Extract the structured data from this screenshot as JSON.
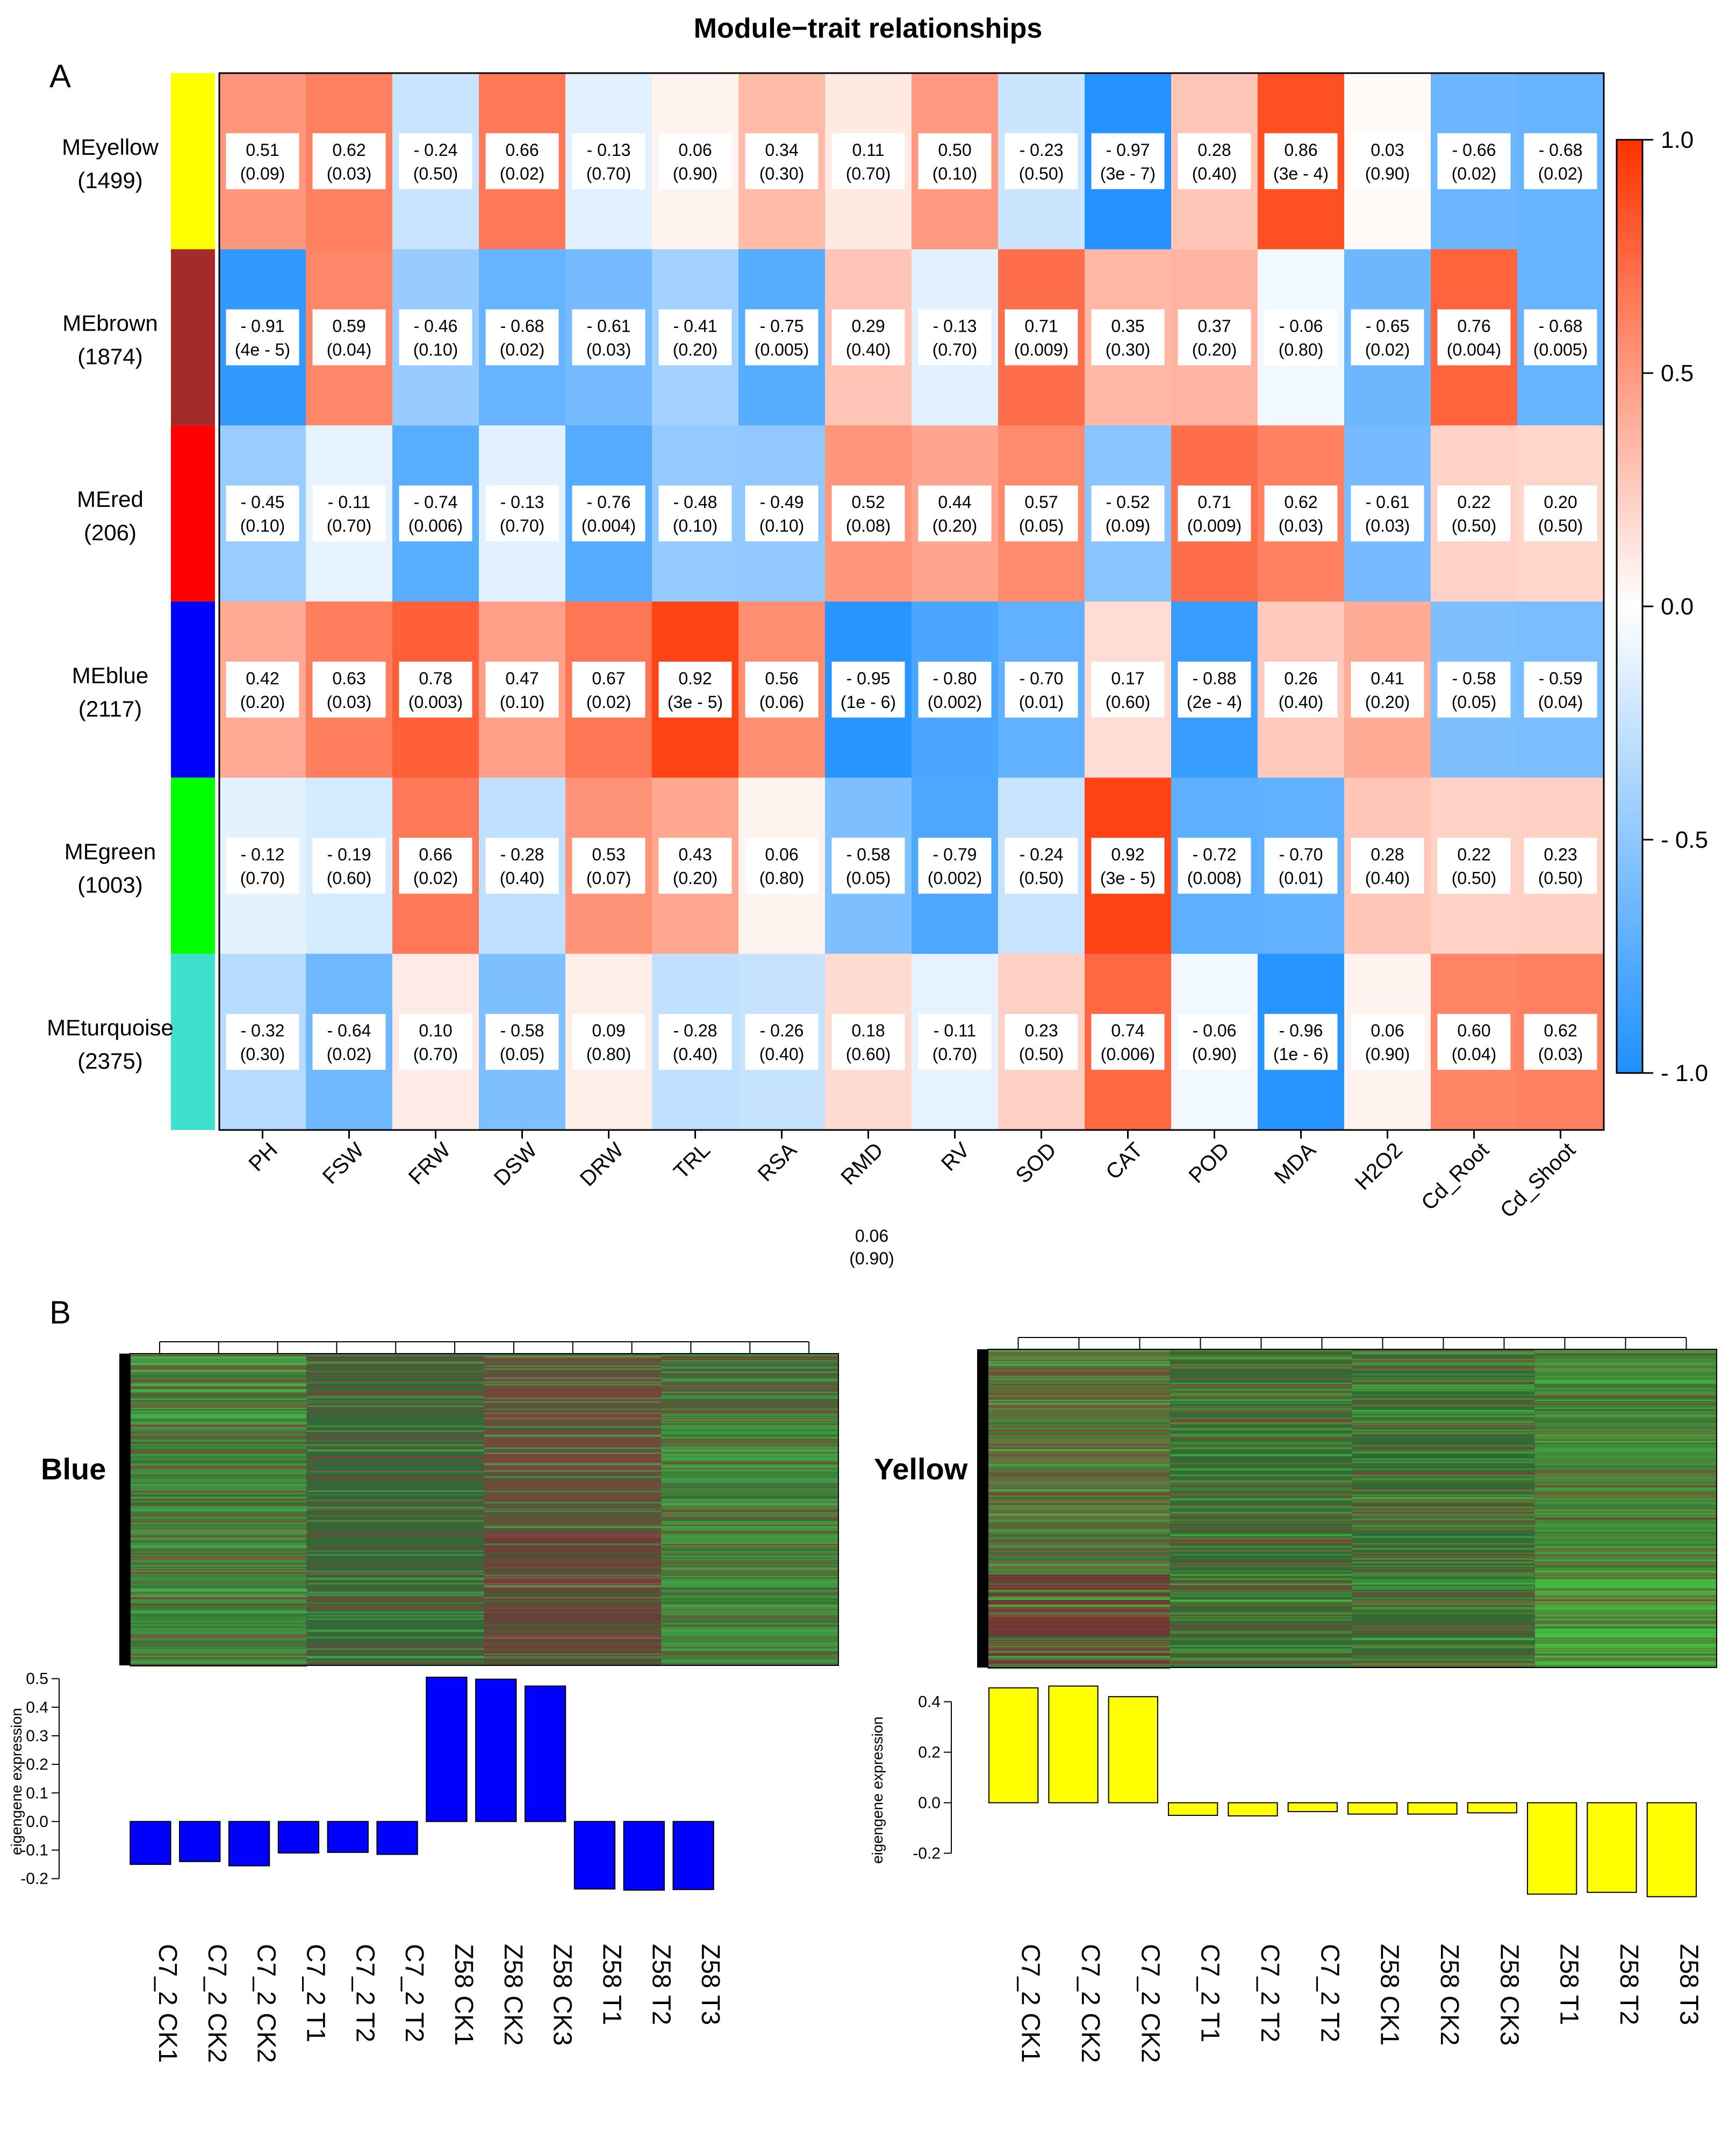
{
  "panel_a": {
    "letter": "A",
    "title": "Module−trait relationships",
    "stray_label": {
      "value": "0.06",
      "p": "(0.90)"
    }
  },
  "panel_b": {
    "letter": "B",
    "blue_label": "Blue",
    "yellow_label": "Yellow"
  },
  "chart_data": [
    {
      "type": "heatmap",
      "title": "Module−trait relationships",
      "rows": [
        {
          "name": "MEyellow",
          "count": "(1499)",
          "color": "#ffff00"
        },
        {
          "name": "MEbrown",
          "count": "(1874)",
          "color": "#a52a2a"
        },
        {
          "name": "MEred",
          "count": "(206)",
          "color": "#ff0000"
        },
        {
          "name": "MEblue",
          "count": "(2117)",
          "color": "#0000ff"
        },
        {
          "name": "MEgreen",
          "count": "(1003)",
          "color": "#00ff00"
        },
        {
          "name": "MEturquoise",
          "count": "(2375)",
          "color": "#40e0d0"
        }
      ],
      "columns": [
        "PH",
        "FSW",
        "FRW",
        "DSW",
        "DRW",
        "TRL",
        "RSA",
        "RMD",
        "RV",
        "SOD",
        "CAT",
        "POD",
        "MDA",
        "H2O2",
        "Cd_Root",
        "Cd_Shoot"
      ],
      "values": [
        [
          0.51,
          0.62,
          -0.24,
          0.66,
          -0.13,
          0.06,
          0.34,
          0.11,
          0.5,
          -0.23,
          -0.97,
          0.28,
          0.86,
          0.03,
          -0.66,
          -0.68
        ],
        [
          -0.91,
          0.59,
          -0.46,
          -0.68,
          -0.61,
          -0.41,
          -0.75,
          0.29,
          -0.13,
          0.71,
          0.35,
          0.37,
          -0.06,
          -0.65,
          0.76,
          -0.68
        ],
        [
          -0.45,
          -0.11,
          -0.74,
          -0.13,
          -0.76,
          -0.48,
          -0.49,
          0.52,
          0.44,
          0.57,
          -0.52,
          0.71,
          0.62,
          -0.61,
          0.22,
          0.2
        ],
        [
          0.42,
          0.63,
          0.78,
          0.47,
          0.67,
          0.92,
          0.56,
          -0.95,
          -0.8,
          -0.7,
          0.17,
          -0.88,
          0.26,
          0.41,
          -0.58,
          -0.59
        ],
        [
          -0.12,
          -0.19,
          0.66,
          -0.28,
          0.53,
          0.43,
          0.06,
          -0.58,
          -0.79,
          -0.24,
          0.92,
          -0.72,
          -0.7,
          0.28,
          0.22,
          0.23
        ],
        [
          -0.32,
          -0.64,
          0.1,
          -0.58,
          0.09,
          -0.28,
          -0.26,
          0.18,
          -0.11,
          0.23,
          0.74,
          -0.06,
          -0.96,
          0.06,
          0.6,
          0.62
        ]
      ],
      "value_labels": [
        [
          "0.51",
          "0.62",
          "- 0.24",
          "0.66",
          "- 0.13",
          "0.06",
          "0.34",
          "0.11",
          "0.50",
          "- 0.23",
          "- 0.97",
          "0.28",
          "0.86",
          "0.03",
          "- 0.66",
          "- 0.68"
        ],
        [
          "- 0.91",
          "0.59",
          "- 0.46",
          "- 0.68",
          "- 0.61",
          "- 0.41",
          "- 0.75",
          "0.29",
          "- 0.13",
          "0.71",
          "0.35",
          "0.37",
          "- 0.06",
          "- 0.65",
          "0.76",
          "- 0.68"
        ],
        [
          "- 0.45",
          "- 0.11",
          "- 0.74",
          "- 0.13",
          "- 0.76",
          "- 0.48",
          "- 0.49",
          "0.52",
          "0.44",
          "0.57",
          "- 0.52",
          "0.71",
          "0.62",
          "- 0.61",
          "0.22",
          "0.20"
        ],
        [
          "0.42",
          "0.63",
          "0.78",
          "0.47",
          "0.67",
          "0.92",
          "0.56",
          "- 0.95",
          "- 0.80",
          "- 0.70",
          "0.17",
          "- 0.88",
          "0.26",
          "0.41",
          "- 0.58",
          "- 0.59"
        ],
        [
          "- 0.12",
          "- 0.19",
          "0.66",
          "- 0.28",
          "0.53",
          "0.43",
          "0.06",
          "- 0.58",
          "- 0.79",
          "- 0.24",
          "0.92",
          "- 0.72",
          "- 0.70",
          "0.28",
          "0.22",
          "0.23"
        ],
        [
          "- 0.32",
          "- 0.64",
          "0.10",
          "- 0.58",
          "0.09",
          "- 0.28",
          "- 0.26",
          "0.18",
          "- 0.11",
          "0.23",
          "0.74",
          "- 0.06",
          "- 0.96",
          "0.06",
          "0.60",
          "0.62"
        ]
      ],
      "p_values": [
        [
          "(0.09)",
          "(0.03)",
          "(0.50)",
          "(0.02)",
          "(0.70)",
          "(0.90)",
          "(0.30)",
          "(0.70)",
          "(0.10)",
          "(0.50)",
          "(3e - 7)",
          "(0.40)",
          "(3e - 4)",
          "(0.90)",
          "(0.02)",
          "(0.02)"
        ],
        [
          "(4e - 5)",
          "(0.04)",
          "(0.10)",
          "(0.02)",
          "(0.03)",
          "(0.20)",
          "(0.005)",
          "(0.40)",
          "(0.70)",
          "(0.009)",
          "(0.30)",
          "(0.20)",
          "(0.80)",
          "(0.02)",
          "(0.004)",
          "(0.005)"
        ],
        [
          "(0.10)",
          "(0.70)",
          "(0.006)",
          "(0.70)",
          "(0.004)",
          "(0.10)",
          "(0.10)",
          "(0.08)",
          "(0.20)",
          "(0.05)",
          "(0.09)",
          "(0.009)",
          "(0.03)",
          "(0.03)",
          "(0.50)",
          "(0.50)"
        ],
        [
          "(0.20)",
          "(0.03)",
          "(0.003)",
          "(0.10)",
          "(0.02)",
          "(3e - 5)",
          "(0.06)",
          "(1e - 6)",
          "(0.002)",
          "(0.01)",
          "(0.60)",
          "(2e - 4)",
          "(0.40)",
          "(0.20)",
          "(0.05)",
          "(0.04)"
        ],
        [
          "(0.70)",
          "(0.60)",
          "(0.02)",
          "(0.40)",
          "(0.07)",
          "(0.20)",
          "(0.80)",
          "(0.05)",
          "(0.002)",
          "(0.50)",
          "(3e - 5)",
          "(0.008)",
          "(0.01)",
          "(0.40)",
          "(0.50)",
          "(0.50)"
        ],
        [
          "(0.30)",
          "(0.02)",
          "(0.70)",
          "(0.05)",
          "(0.80)",
          "(0.40)",
          "(0.40)",
          "(0.60)",
          "(0.70)",
          "(0.50)",
          "(0.006)",
          "(0.90)",
          "(1e - 6)",
          "(0.90)",
          "(0.04)",
          "(0.03)"
        ]
      ],
      "color_scale": {
        "min": -1,
        "max": 1,
        "low_color": "#1e90ff",
        "mid_color": "#ffffff",
        "high_color": "#ff3300"
      },
      "legend_ticks": [
        "1.0",
        "0.5",
        "0.0",
        "- 0.5",
        "- 1.0"
      ],
      "legend_placement": "right"
    },
    {
      "type": "bar",
      "module": "Blue",
      "bar_color": "#0000ff",
      "categories": [
        "C7_2 CK1",
        "C7_2 CK2",
        "C7_2 CK2",
        "C7_2 T1",
        "C7_2 T2",
        "C7_2 T2",
        "Z58 CK1",
        "Z58 CK2",
        "Z58 CK3",
        "Z58 T1",
        "Z58 T2",
        "Z58 T3"
      ],
      "values": [
        -0.15,
        -0.14,
        -0.155,
        -0.11,
        -0.108,
        -0.115,
        0.505,
        0.498,
        0.474,
        -0.236,
        -0.24,
        -0.238
      ],
      "ylabel": "eigengene expression",
      "yticks": [
        "0.5",
        "0.4",
        "0.3",
        "0.2",
        "0.1",
        "0.0",
        "-0.1",
        "-0.2"
      ],
      "ylim": [
        -0.24,
        0.52
      ]
    },
    {
      "type": "bar",
      "module": "Yellow",
      "bar_color": "#ffff00",
      "categories": [
        "C7_2 CK1",
        "C7_2 CK2",
        "C7_2 CK2",
        "C7_2 T1",
        "C7_2 T2",
        "C7_2 T2",
        "Z58 CK1",
        "Z58 CK2",
        "Z58 CK3",
        "Z58 T1",
        "Z58 T2",
        "Z58 T3"
      ],
      "values": [
        0.455,
        0.462,
        0.42,
        -0.05,
        -0.052,
        -0.035,
        -0.045,
        -0.045,
        -0.04,
        -0.362,
        -0.355,
        -0.372
      ],
      "ylabel": "eigengene expression",
      "yticks": [
        "0.4",
        "0.2",
        "0.0",
        "-0.2"
      ],
      "ylim": [
        -0.38,
        0.48
      ]
    }
  ]
}
